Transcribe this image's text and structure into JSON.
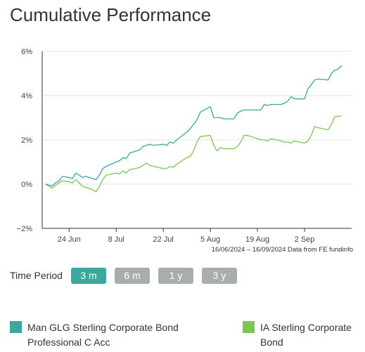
{
  "page": {
    "title": "Cumulative Performance"
  },
  "time_period": {
    "label": "Time Period",
    "buttons": [
      {
        "label": "3 m",
        "active": true
      },
      {
        "label": "6 m",
        "active": false
      },
      {
        "label": "1 y",
        "active": false
      },
      {
        "label": "3 y",
        "active": false
      }
    ]
  },
  "legend": [
    {
      "name": "Man GLG Sterling Corporate Bond Professional C Acc",
      "color": "#3aa89c"
    },
    {
      "name": "IA Sterling Corporate Bond",
      "color": "#7dc554"
    }
  ],
  "chart_data": {
    "type": "line",
    "source_text": "16/06/2024 – 16/09/2024 Data from FE fundinfo",
    "ylim": [
      -2,
      6
    ],
    "yticks": [
      "6%",
      "4%",
      "2%",
      "0%",
      "−2%"
    ],
    "ytick_values": [
      6,
      4,
      2,
      0,
      -2
    ],
    "xlim": [
      "2024-06-16",
      "2024-09-16"
    ],
    "xticks": [
      {
        "date": "2024-06-24",
        "label": "24 Jun"
      },
      {
        "date": "2024-07-08",
        "label": "8 Jul"
      },
      {
        "date": "2024-07-22",
        "label": "22 Jul"
      },
      {
        "date": "2024-08-05",
        "label": "5 Aug"
      },
      {
        "date": "2024-08-19",
        "label": "19 Aug"
      },
      {
        "date": "2024-09-02",
        "label": "2 Sep"
      }
    ],
    "grid": true,
    "series": [
      {
        "name": "Man GLG Sterling Corporate Bond Professional C Acc",
        "color": "#3aa89c",
        "points": [
          [
            "2024-06-17",
            0.0
          ],
          [
            "2024-06-18",
            -0.05
          ],
          [
            "2024-06-19",
            -0.08
          ],
          [
            "2024-06-20",
            0.05
          ],
          [
            "2024-06-21",
            0.15
          ],
          [
            "2024-06-22",
            0.35
          ],
          [
            "2024-06-24",
            0.3
          ],
          [
            "2024-06-25",
            0.25
          ],
          [
            "2024-06-26",
            0.5
          ],
          [
            "2024-06-27",
            0.4
          ],
          [
            "2024-06-28",
            0.3
          ],
          [
            "2024-06-29",
            0.35
          ],
          [
            "2024-07-01",
            0.25
          ],
          [
            "2024-07-02",
            0.2
          ],
          [
            "2024-07-03",
            0.4
          ],
          [
            "2024-07-04",
            0.7
          ],
          [
            "2024-07-05",
            0.8
          ],
          [
            "2024-07-08",
            1.0
          ],
          [
            "2024-07-09",
            1.05
          ],
          [
            "2024-07-10",
            1.2
          ],
          [
            "2024-07-11",
            1.15
          ],
          [
            "2024-07-12",
            1.4
          ],
          [
            "2024-07-15",
            1.55
          ],
          [
            "2024-07-16",
            1.7
          ],
          [
            "2024-07-17",
            1.75
          ],
          [
            "2024-07-18",
            1.8
          ],
          [
            "2024-07-19",
            1.75
          ],
          [
            "2024-07-22",
            1.8
          ],
          [
            "2024-07-23",
            1.75
          ],
          [
            "2024-07-24",
            1.9
          ],
          [
            "2024-07-25",
            1.85
          ],
          [
            "2024-07-26",
            2.0
          ],
          [
            "2024-07-29",
            2.35
          ],
          [
            "2024-07-30",
            2.5
          ],
          [
            "2024-07-31",
            2.7
          ],
          [
            "2024-08-01",
            2.9
          ],
          [
            "2024-08-02",
            3.25
          ],
          [
            "2024-08-05",
            3.5
          ],
          [
            "2024-08-06",
            3.0
          ],
          [
            "2024-08-07",
            3.0
          ],
          [
            "2024-08-08",
            3.0
          ],
          [
            "2024-08-09",
            2.95
          ],
          [
            "2024-08-12",
            2.95
          ],
          [
            "2024-08-13",
            3.2
          ],
          [
            "2024-08-14",
            3.3
          ],
          [
            "2024-08-15",
            3.35
          ],
          [
            "2024-08-16",
            3.35
          ],
          [
            "2024-08-19",
            3.35
          ],
          [
            "2024-08-20",
            3.35
          ],
          [
            "2024-08-21",
            3.6
          ],
          [
            "2024-08-22",
            3.55
          ],
          [
            "2024-08-23",
            3.6
          ],
          [
            "2024-08-26",
            3.6
          ],
          [
            "2024-08-27",
            3.65
          ],
          [
            "2024-08-28",
            3.75
          ],
          [
            "2024-08-29",
            3.95
          ],
          [
            "2024-08-30",
            3.85
          ],
          [
            "2024-09-02",
            3.85
          ],
          [
            "2024-09-03",
            4.3
          ],
          [
            "2024-09-04",
            4.5
          ],
          [
            "2024-09-05",
            4.7
          ],
          [
            "2024-09-06",
            4.75
          ],
          [
            "2024-09-09",
            4.7
          ],
          [
            "2024-09-10",
            5.0
          ],
          [
            "2024-09-11",
            5.15
          ],
          [
            "2024-09-12",
            5.2
          ],
          [
            "2024-09-13",
            5.35
          ]
        ]
      },
      {
        "name": "IA Sterling Corporate Bond",
        "color": "#7dc554",
        "points": [
          [
            "2024-06-17",
            0.0
          ],
          [
            "2024-06-18",
            -0.1
          ],
          [
            "2024-06-19",
            -0.18
          ],
          [
            "2024-06-20",
            -0.05
          ],
          [
            "2024-06-21",
            0.05
          ],
          [
            "2024-06-22",
            0.15
          ],
          [
            "2024-06-24",
            0.1
          ],
          [
            "2024-06-25",
            0.05
          ],
          [
            "2024-06-26",
            0.2
          ],
          [
            "2024-06-27",
            0.05
          ],
          [
            "2024-06-28",
            -0.1
          ],
          [
            "2024-06-29",
            -0.15
          ],
          [
            "2024-07-01",
            -0.25
          ],
          [
            "2024-07-02",
            -0.35
          ],
          [
            "2024-07-03",
            -0.1
          ],
          [
            "2024-07-04",
            0.2
          ],
          [
            "2024-07-05",
            0.4
          ],
          [
            "2024-07-08",
            0.5
          ],
          [
            "2024-07-09",
            0.45
          ],
          [
            "2024-07-10",
            0.6
          ],
          [
            "2024-07-11",
            0.5
          ],
          [
            "2024-07-12",
            0.65
          ],
          [
            "2024-07-15",
            0.75
          ],
          [
            "2024-07-16",
            0.85
          ],
          [
            "2024-07-17",
            0.95
          ],
          [
            "2024-07-18",
            0.85
          ],
          [
            "2024-07-19",
            0.8
          ],
          [
            "2024-07-22",
            0.7
          ],
          [
            "2024-07-23",
            0.7
          ],
          [
            "2024-07-24",
            0.8
          ],
          [
            "2024-07-25",
            0.75
          ],
          [
            "2024-07-26",
            0.9
          ],
          [
            "2024-07-29",
            1.2
          ],
          [
            "2024-07-30",
            1.25
          ],
          [
            "2024-07-31",
            1.5
          ],
          [
            "2024-08-01",
            1.9
          ],
          [
            "2024-08-02",
            2.15
          ],
          [
            "2024-08-05",
            2.2
          ],
          [
            "2024-08-06",
            1.75
          ],
          [
            "2024-08-07",
            1.5
          ],
          [
            "2024-08-08",
            1.65
          ],
          [
            "2024-08-09",
            1.6
          ],
          [
            "2024-08-12",
            1.6
          ],
          [
            "2024-08-13",
            1.7
          ],
          [
            "2024-08-14",
            1.9
          ],
          [
            "2024-08-15",
            2.2
          ],
          [
            "2024-08-16",
            2.2
          ],
          [
            "2024-08-19",
            2.05
          ],
          [
            "2024-08-20",
            2.0
          ],
          [
            "2024-08-21",
            2.0
          ],
          [
            "2024-08-22",
            1.95
          ],
          [
            "2024-08-23",
            2.05
          ],
          [
            "2024-08-26",
            1.95
          ],
          [
            "2024-08-27",
            1.9
          ],
          [
            "2024-08-28",
            1.9
          ],
          [
            "2024-08-29",
            1.85
          ],
          [
            "2024-08-30",
            1.95
          ],
          [
            "2024-09-02",
            1.85
          ],
          [
            "2024-09-03",
            1.95
          ],
          [
            "2024-09-04",
            2.2
          ],
          [
            "2024-09-05",
            2.6
          ],
          [
            "2024-09-06",
            2.55
          ],
          [
            "2024-09-09",
            2.45
          ],
          [
            "2024-09-10",
            2.7
          ],
          [
            "2024-09-11",
            3.05
          ],
          [
            "2024-09-12",
            3.05
          ],
          [
            "2024-09-13",
            3.1
          ]
        ]
      }
    ]
  }
}
